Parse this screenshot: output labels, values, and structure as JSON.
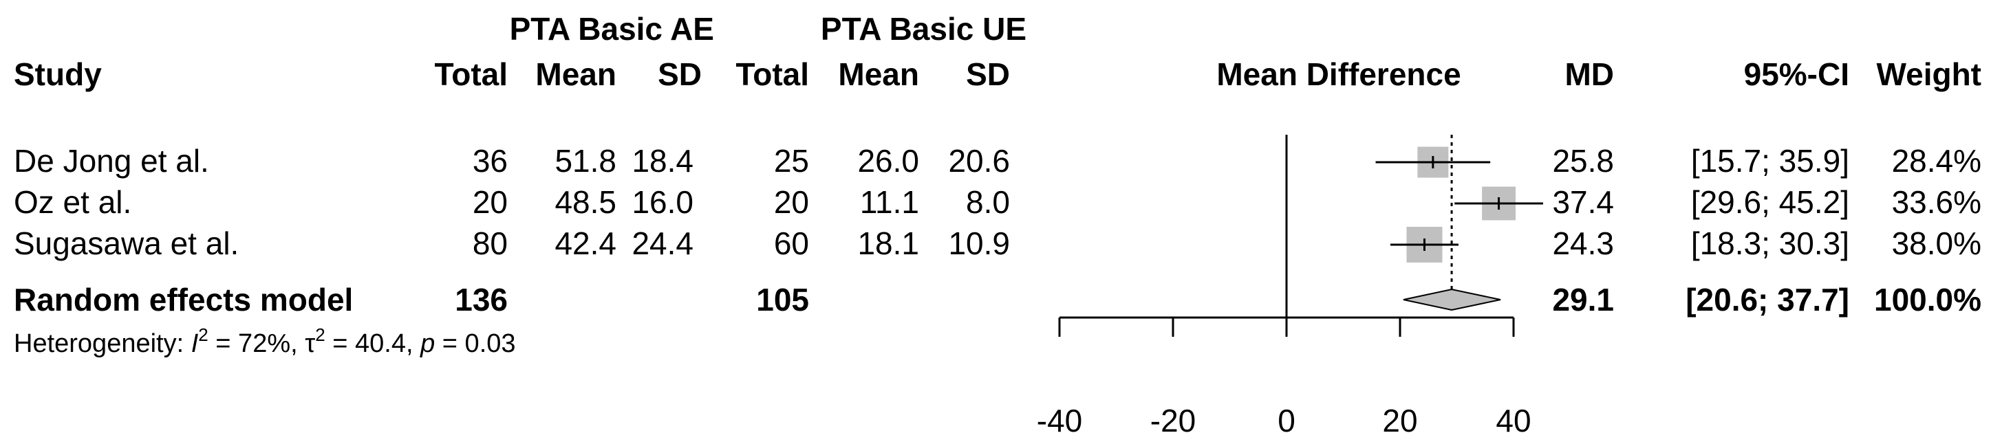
{
  "headers": {
    "group_ae": "PTA Basic AE",
    "group_ue": "PTA Basic UE",
    "study": "Study",
    "total_ae": "Total",
    "mean_ae": "Mean",
    "sd_ae": "SD",
    "total_ue": "Total",
    "mean_ue": "Mean",
    "sd_ue": "SD",
    "plot": "Mean Difference",
    "md": "MD",
    "ci": "95%-CI",
    "weight": "Weight"
  },
  "heterogeneity": {
    "prefix": "Heterogeneity: ",
    "i_symbol": "I",
    "sup": "2",
    "i_value": " = 72%, ",
    "tau_symbol": "τ",
    "tau_value": " = 40.4, ",
    "p_symbol": "p",
    "p_value": " = 0.03"
  },
  "chart_data": {
    "type": "forest",
    "xlim": [
      -40,
      40
    ],
    "xticks": [
      "-40",
      "-20",
      "0",
      "20",
      "40"
    ],
    "reference_line": 0,
    "pooled_line": 29.1,
    "studies": [
      {
        "name": "De Jong et al.",
        "total_ae": "36",
        "mean_ae": "51.8",
        "sd_ae": "18.4",
        "total_ue": "25",
        "mean_ue": "26.0",
        "sd_ue": "20.6",
        "md": 25.8,
        "lower": 15.7,
        "upper": 35.9,
        "md_text": "25.8",
        "ci_text": "[15.7; 35.9]",
        "weight_text": "28.4%",
        "weight": 28.4
      },
      {
        "name": "Oz et al.",
        "total_ae": "20",
        "mean_ae": "48.5",
        "sd_ae": "16.0",
        "total_ue": "20",
        "mean_ue": "11.1",
        "sd_ue": "8.0",
        "md": 37.4,
        "lower": 29.6,
        "upper": 45.2,
        "md_text": "37.4",
        "ci_text": "[29.6; 45.2]",
        "weight_text": "33.6%",
        "weight": 33.6
      },
      {
        "name": "Sugasawa et al.",
        "total_ae": "80",
        "mean_ae": "42.4",
        "sd_ae": "24.4",
        "total_ue": "60",
        "mean_ue": "18.1",
        "sd_ue": "10.9",
        "md": 24.3,
        "lower": 18.3,
        "upper": 30.3,
        "md_text": "24.3",
        "ci_text": "[18.3; 30.3]",
        "weight_text": "38.0%",
        "weight": 38.0
      }
    ],
    "pooled": {
      "name": "Random effects model",
      "total_ae": "136",
      "total_ue": "105",
      "md": 29.1,
      "lower": 20.6,
      "upper": 37.7,
      "md_text": "29.1",
      "ci_text": "[20.6; 37.7]",
      "weight_text": "100.0%"
    }
  }
}
